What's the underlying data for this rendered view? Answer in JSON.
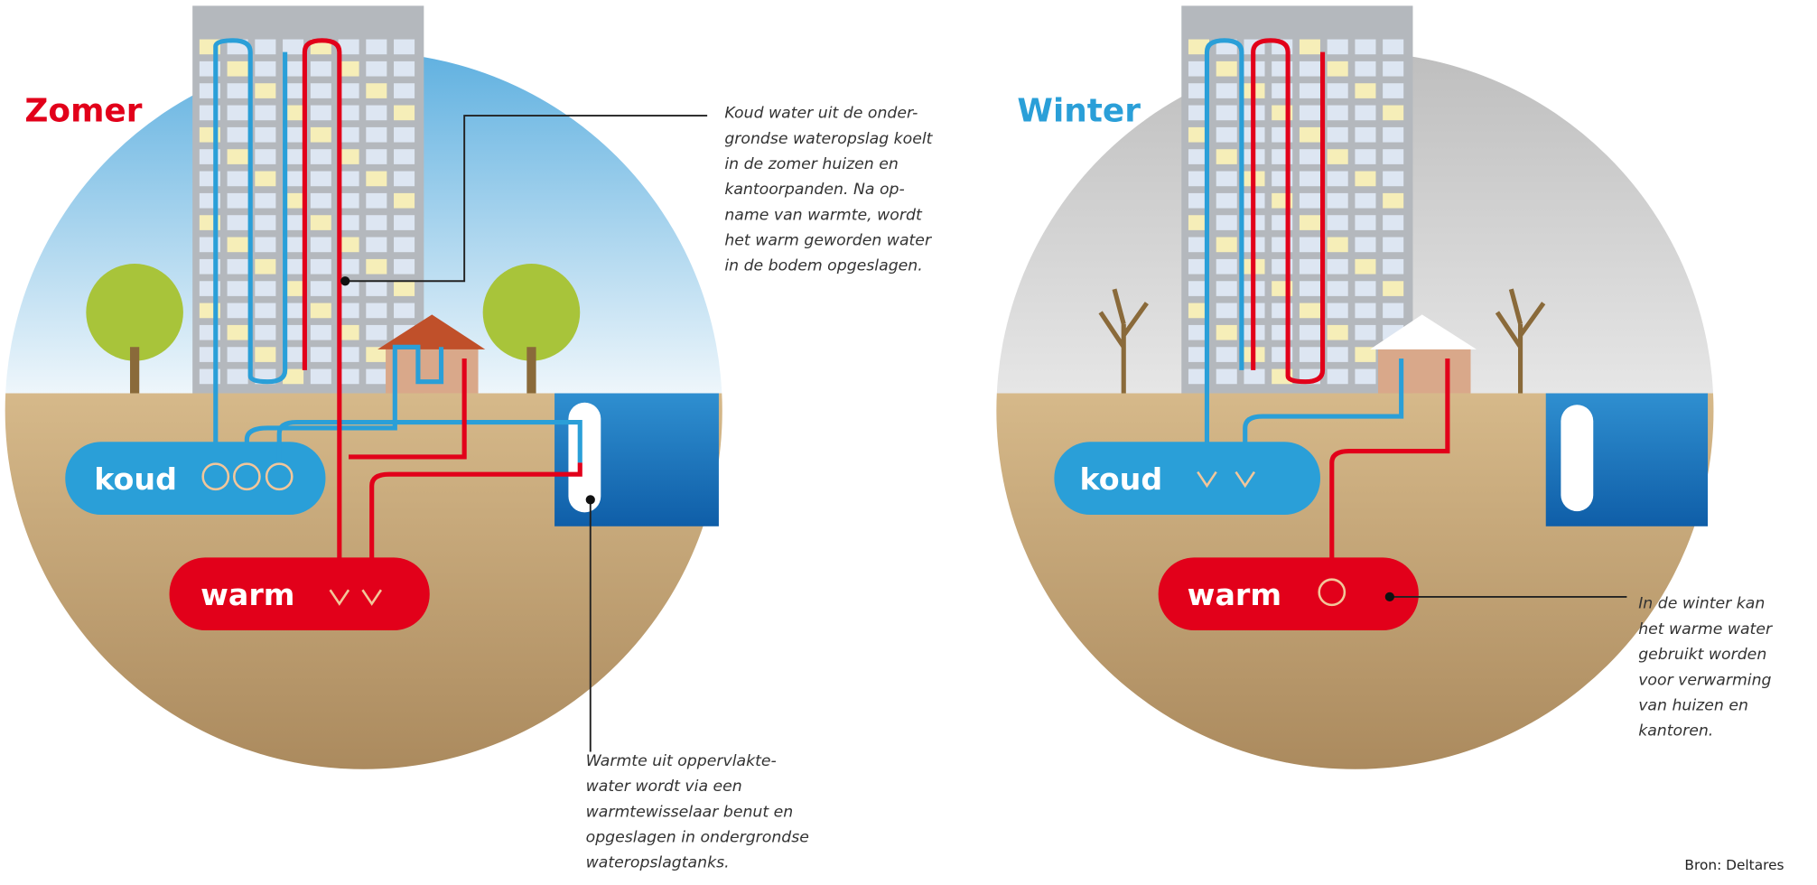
{
  "panels": [
    {
      "title": "Zomer",
      "cold_label": "koud",
      "warm_label": "warm"
    },
    {
      "title": "Winter",
      "cold_label": "koud",
      "warm_label": "warm"
    }
  ],
  "annotations": [
    {
      "lines": [
        "Koud water uit de onder-",
        "grondse wateropslag koelt",
        "in de zomer huizen en",
        "kantoorpanden. Na op-",
        "name van warmte, wordt",
        "het warm geworden water",
        "in de  bodem opgeslagen."
      ]
    },
    {
      "lines": [
        "Warmte uit oppervlakte-",
        "water wordt via een",
        "warmtewisselaar benut en",
        "opgeslagen in ondergrondse",
        "wateropslagtanks."
      ]
    },
    {
      "lines": [
        "In de winter kan",
        "het warme water",
        "gebruikt worden",
        "voor verwarming",
        "van huizen en",
        "kantoren."
      ]
    }
  ],
  "source": "Bron: Deltares"
}
